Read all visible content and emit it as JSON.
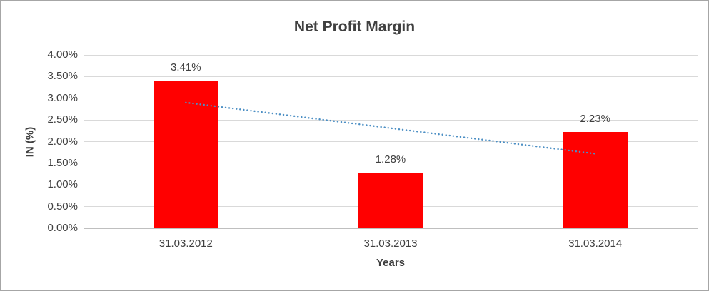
{
  "frame": {
    "background": "#ffffff",
    "border_color": "#a6a6a6"
  },
  "chart_data": {
    "type": "bar",
    "title": "Net Profit Margin",
    "categories": [
      "31.03.2012",
      "31.03.2013",
      "31.03.2014"
    ],
    "values": [
      3.41,
      1.28,
      2.23
    ],
    "value_labels": [
      "3.41%",
      "1.28%",
      "2.23%"
    ],
    "xlabel": "Years",
    "ylabel": "IN (%)",
    "ylim": [
      0,
      4
    ],
    "ytick_step": 0.5,
    "ytick_labels": [
      "0.00%",
      "0.50%",
      "1.00%",
      "1.50%",
      "2.00%",
      "2.50%",
      "3.00%",
      "3.50%",
      "4.00%"
    ],
    "grid": true,
    "legend": "none",
    "bar_color": "#ff0000",
    "text_color": "#404040",
    "gridline_color": "#d9d9d9",
    "trendline": {
      "type": "linear",
      "style": "dotted",
      "color": "#4c8fc4",
      "start_value": 2.9,
      "end_value": 1.72
    }
  }
}
